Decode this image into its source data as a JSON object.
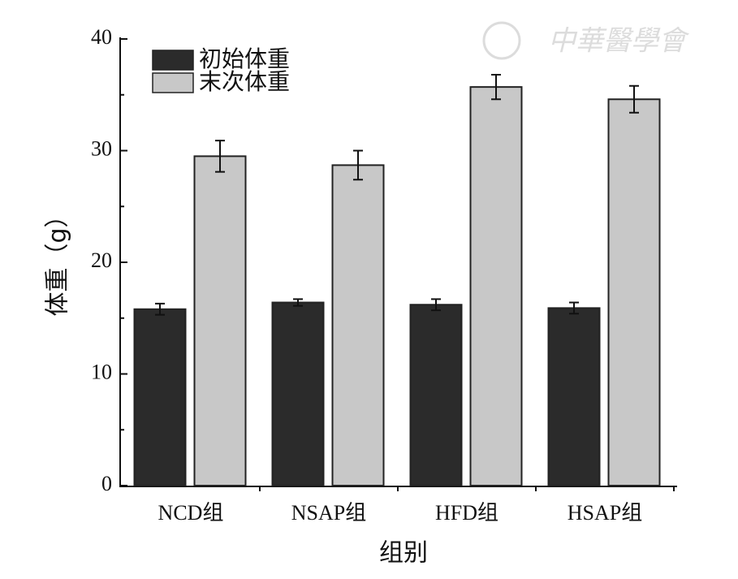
{
  "chart_data": {
    "type": "bar",
    "watermark": "中華醫學會",
    "y_label": "体重（g）",
    "x_label": "组别",
    "categories": [
      "NCD组",
      "NSAP组",
      "HFD组",
      "HSAP组"
    ],
    "series": [
      {
        "name": "初始体重",
        "color": "#2b2b2b",
        "values": [
          15.8,
          16.4,
          16.2,
          15.9
        ],
        "errors": [
          0.5,
          0.3,
          0.5,
          0.5
        ]
      },
      {
        "name": "末次体重",
        "color": "#c8c8c8",
        "values": [
          29.5,
          28.7,
          35.7,
          34.6
        ],
        "errors": [
          1.4,
          1.3,
          1.1,
          1.2
        ]
      }
    ],
    "ylim": [
      0,
      40
    ],
    "yticks": [
      0,
      10,
      20,
      30,
      40
    ],
    "yminorticks": [
      5,
      15,
      25,
      35
    ],
    "legend": "top-left"
  }
}
